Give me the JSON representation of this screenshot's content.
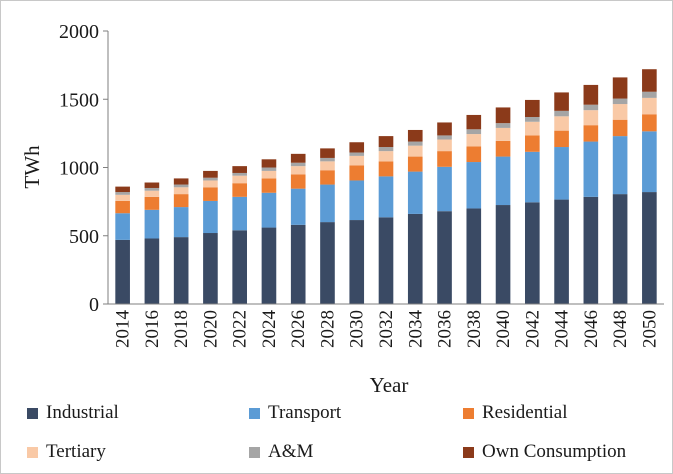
{
  "chart_data": {
    "type": "bar",
    "stacked": true,
    "xlabel": "Year",
    "ylabel": "TWh",
    "ylim": [
      0,
      2000
    ],
    "yticks": [
      "0",
      "500",
      "1000",
      "1500",
      "2000"
    ],
    "grid": false,
    "legend_position": "bottom",
    "categories": [
      "2014",
      "2016",
      "2018",
      "2020",
      "2022",
      "2024",
      "2026",
      "2028",
      "2030",
      "2032",
      "2034",
      "2036",
      "2038",
      "2040",
      "2042",
      "2044",
      "2046",
      "2048",
      "2050"
    ],
    "series": [
      {
        "name": "Industrial",
        "color": "#3a4a64",
        "values": [
          470,
          480,
          490,
          520,
          540,
          560,
          580,
          600,
          615,
          635,
          660,
          680,
          700,
          725,
          745,
          765,
          785,
          805,
          820
        ]
      },
      {
        "name": "Transport",
        "color": "#5b9bd5",
        "values": [
          195,
          210,
          220,
          235,
          245,
          255,
          265,
          275,
          290,
          300,
          310,
          325,
          340,
          355,
          370,
          385,
          405,
          425,
          445
        ]
      },
      {
        "name": "Residential",
        "color": "#ed7d31",
        "values": [
          90,
          95,
          95,
          100,
          100,
          105,
          105,
          105,
          110,
          110,
          110,
          115,
          115,
          115,
          120,
          120,
          120,
          120,
          125
        ]
      },
      {
        "name": "Tertiary",
        "color": "#f9c9a6",
        "values": [
          45,
          45,
          50,
          50,
          55,
          55,
          60,
          65,
          70,
          75,
          80,
          85,
          90,
          95,
          100,
          105,
          110,
          115,
          120
        ]
      },
      {
        "name": "A&M",
        "color": "#a5a5a5",
        "values": [
          20,
          20,
          20,
          20,
          20,
          25,
          25,
          25,
          25,
          30,
          30,
          30,
          35,
          35,
          35,
          40,
          40,
          40,
          45
        ]
      },
      {
        "name": "Own Consumption",
        "color": "#8b3a1a",
        "values": [
          40,
          40,
          45,
          50,
          50,
          60,
          65,
          70,
          75,
          80,
          85,
          95,
          105,
          115,
          125,
          135,
          145,
          155,
          165
        ]
      }
    ]
  }
}
